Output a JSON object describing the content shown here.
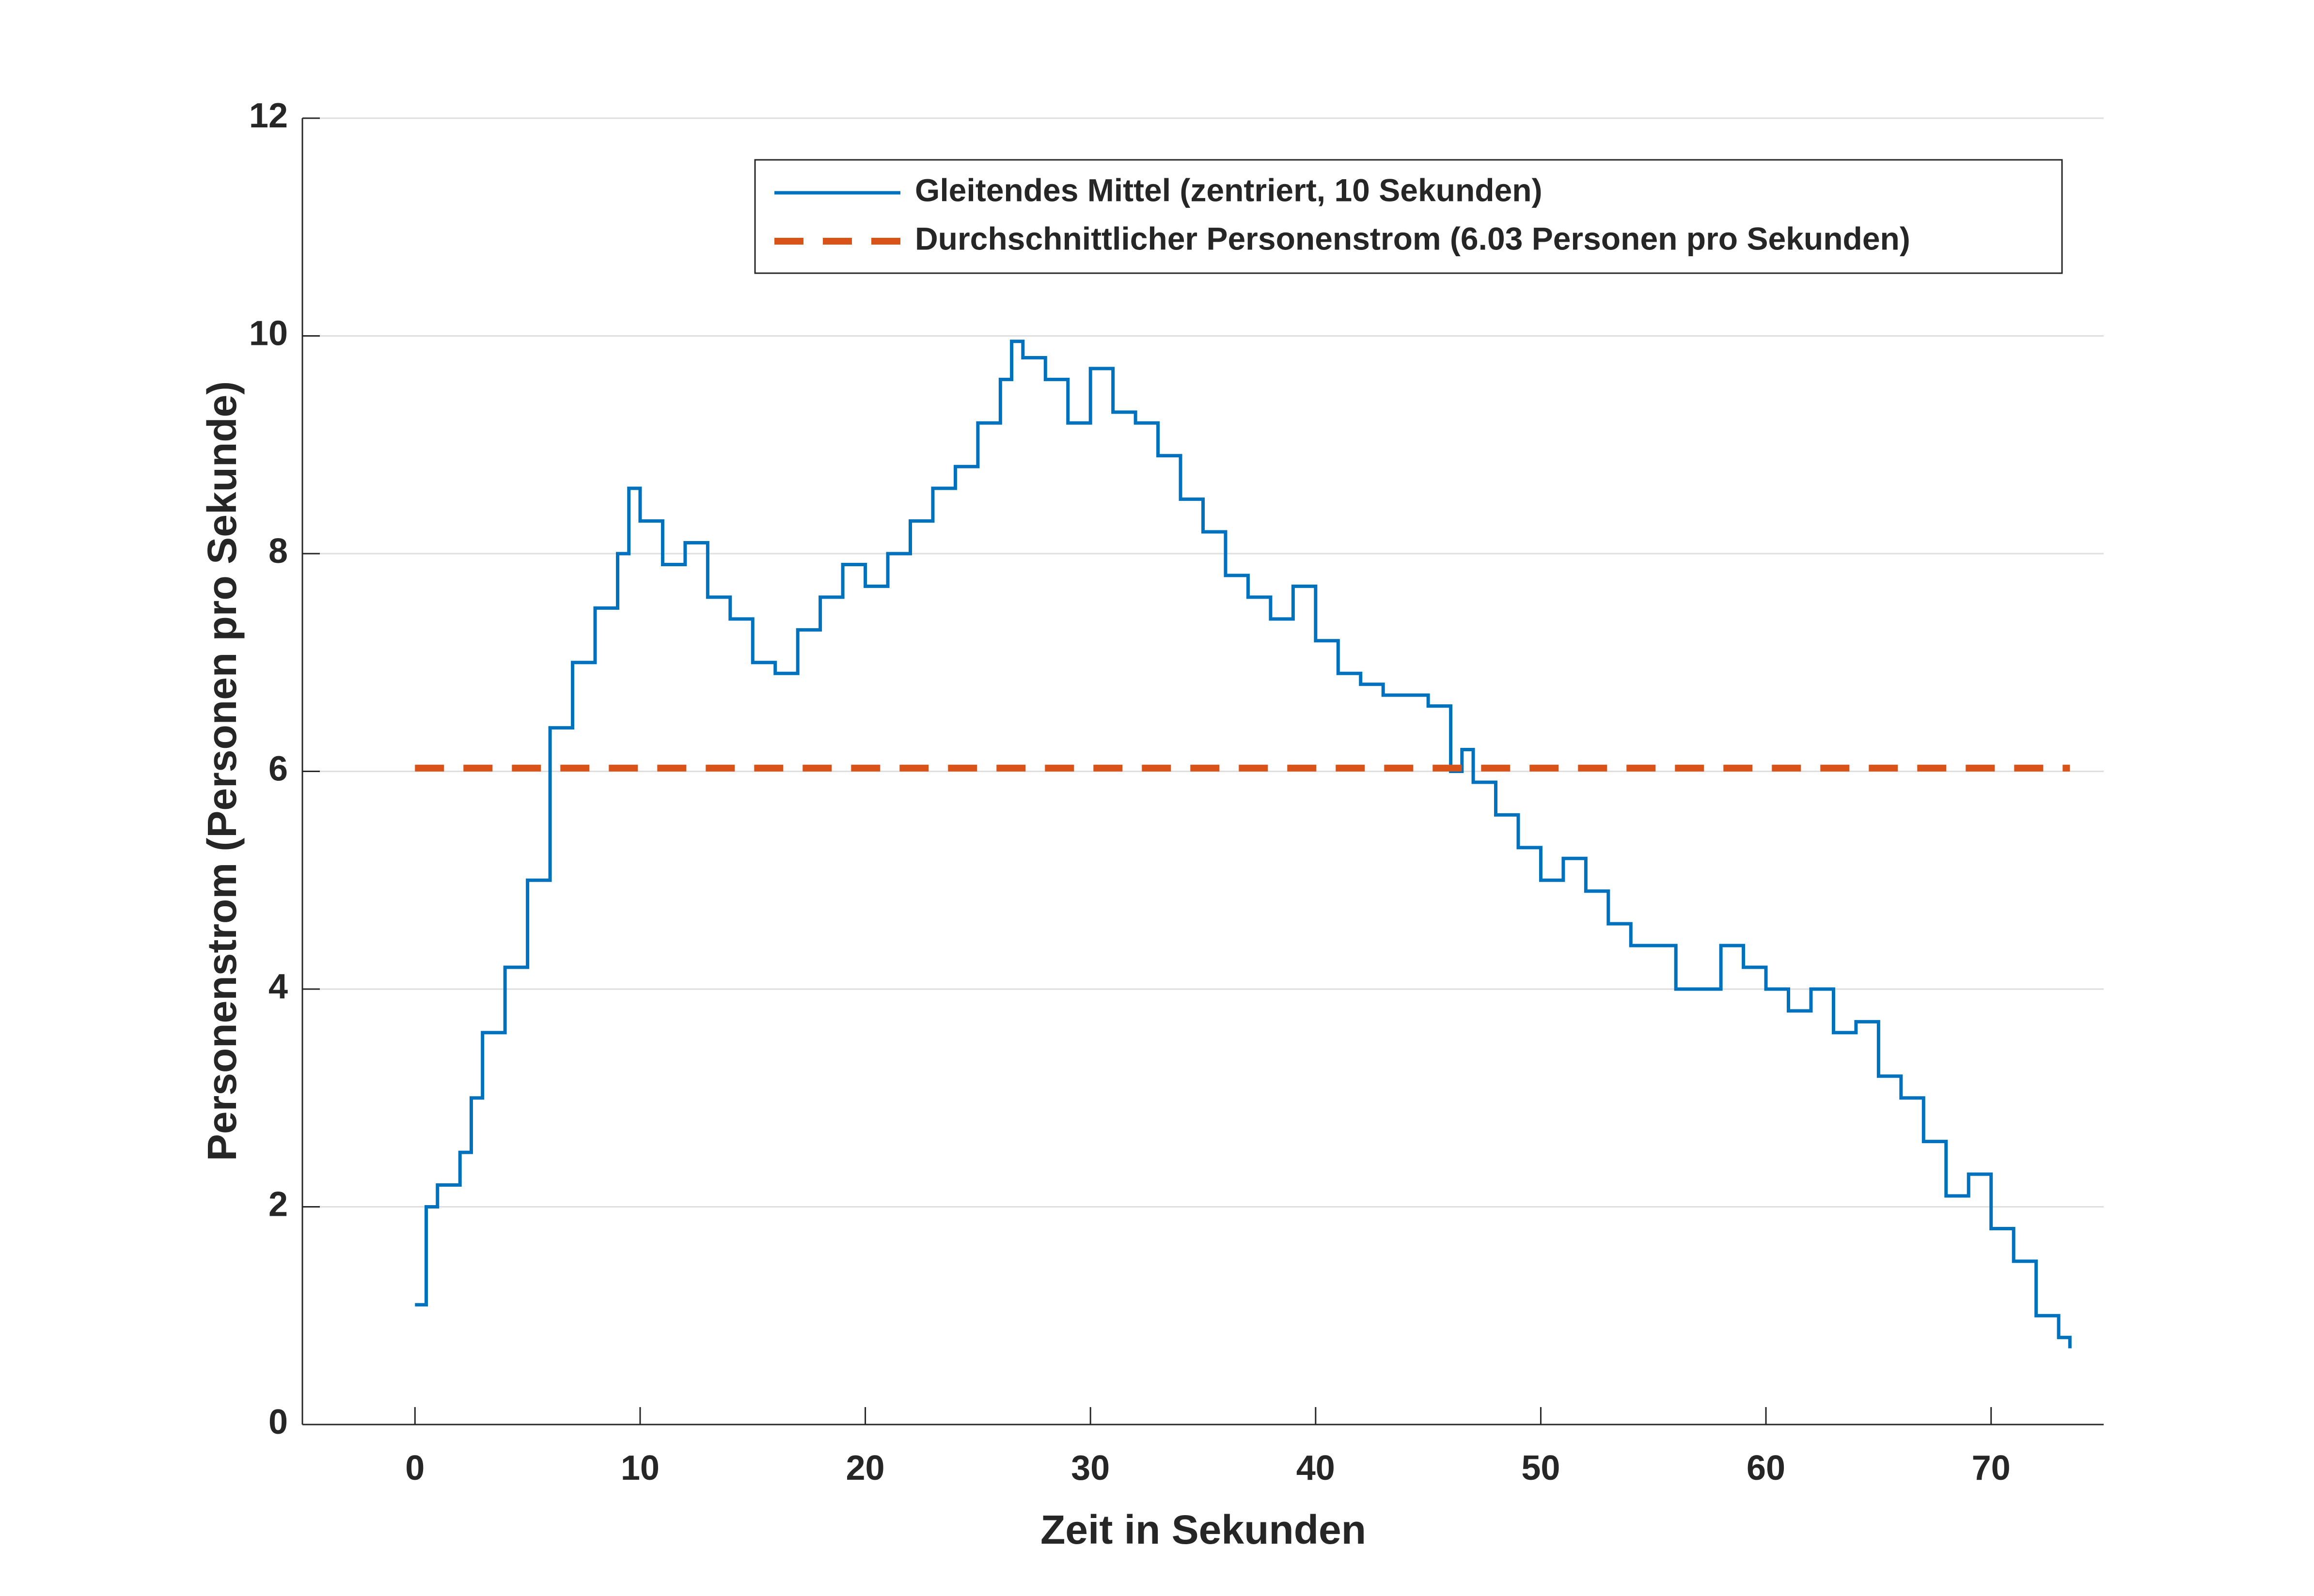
{
  "chart_data": {
    "type": "line",
    "xlabel": "Zeit in Sekunden",
    "ylabel": "Personenstrom (Personen pro Sekunde)",
    "xlim": [
      -5,
      75
    ],
    "xticks": [
      0,
      10,
      20,
      30,
      40,
      50,
      60,
      70
    ],
    "ylim": [
      0,
      12
    ],
    "yticks": [
      0,
      2,
      4,
      6,
      8,
      10,
      12
    ],
    "grid": true,
    "legend": "upper right",
    "series": [
      {
        "name": "Gleitendes Mittel (zentriert, 10 Sekunden)",
        "color": "#0072bd",
        "style": "solid",
        "step": true,
        "x": [
          0,
          0.5,
          1,
          2,
          2.5,
          3,
          4,
          5,
          6,
          7,
          8,
          9,
          9.5,
          10,
          11,
          12,
          13,
          14,
          15,
          16,
          17,
          18,
          19,
          20,
          21,
          22,
          23,
          24,
          25,
          26,
          26.5,
          27,
          28,
          29,
          30,
          31,
          32,
          33,
          34,
          35,
          36,
          37,
          38,
          39,
          40,
          41,
          42,
          43,
          44,
          45,
          46,
          46.5,
          47,
          48,
          49,
          50,
          51,
          52,
          53,
          54,
          55,
          56,
          57,
          58,
          59,
          60,
          61,
          62,
          63,
          64,
          65,
          66,
          67,
          68,
          69,
          70,
          71,
          72,
          73,
          73.5
        ],
        "values": [
          1.1,
          2.0,
          2.2,
          2.5,
          3.0,
          3.6,
          4.2,
          5.0,
          6.4,
          7.0,
          7.5,
          8.0,
          8.6,
          8.3,
          7.9,
          8.1,
          7.6,
          7.4,
          7.0,
          6.9,
          7.3,
          7.6,
          7.9,
          7.7,
          8.0,
          8.3,
          8.6,
          8.8,
          9.2,
          9.6,
          9.95,
          9.8,
          9.6,
          9.2,
          9.7,
          9.3,
          9.2,
          8.9,
          8.5,
          8.2,
          7.8,
          7.6,
          7.4,
          7.7,
          7.2,
          6.9,
          6.8,
          6.7,
          6.7,
          6.6,
          6.0,
          6.2,
          5.9,
          5.6,
          5.3,
          5.0,
          5.2,
          4.9,
          4.6,
          4.4,
          4.4,
          4.0,
          4.0,
          4.4,
          4.2,
          4.0,
          3.8,
          4.0,
          3.6,
          3.7,
          3.2,
          3.0,
          2.6,
          2.1,
          2.3,
          1.8,
          1.5,
          1.0,
          0.8,
          0.7
        ]
      },
      {
        "name": "Durchschnittlicher Personenstrom (6.03 Personen pro Sekunden)",
        "color": "#d95319",
        "style": "dashed",
        "step": false,
        "x": [
          0,
          73.5
        ],
        "values": [
          6.03,
          6.03
        ]
      }
    ]
  }
}
